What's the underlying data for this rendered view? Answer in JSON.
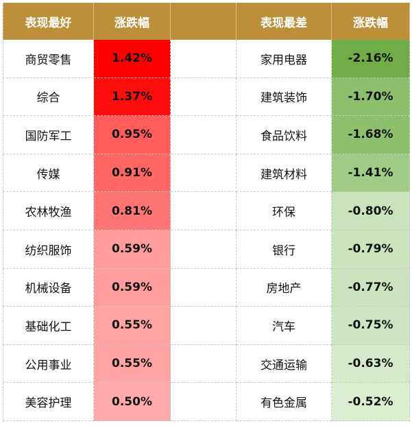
{
  "headers": {
    "best_name": "表现最好",
    "best_change": "涨跌幅",
    "worst_name": "表现最差",
    "worst_change": "涨跌幅"
  },
  "chart_data": {
    "type": "table",
    "columns": [
      "表现最好",
      "涨跌幅",
      "表现最差",
      "涨跌幅"
    ],
    "best": [
      {
        "name": "商贸零售",
        "change": "1.42%",
        "value": 1.42,
        "color": "#ff0000"
      },
      {
        "name": "综合",
        "change": "1.37%",
        "value": 1.37,
        "color": "#ff0d0d"
      },
      {
        "name": "国防军工",
        "change": "0.95%",
        "value": 0.95,
        "color": "#ff5c5c"
      },
      {
        "name": "传媒",
        "change": "0.91%",
        "value": 0.91,
        "color": "#ff6666"
      },
      {
        "name": "农林牧渔",
        "change": "0.81%",
        "value": 0.81,
        "color": "#ff7575"
      },
      {
        "name": "纺织服饰",
        "change": "0.59%",
        "value": 0.59,
        "color": "#ff9c9c"
      },
      {
        "name": "机械设备",
        "change": "0.59%",
        "value": 0.59,
        "color": "#ff9c9c"
      },
      {
        "name": "基础化工",
        "change": "0.55%",
        "value": 0.55,
        "color": "#ffa3a3"
      },
      {
        "name": "公用事业",
        "change": "0.55%",
        "value": 0.55,
        "color": "#ffa3a3"
      },
      {
        "name": "美容护理",
        "change": "0.50%",
        "value": 0.5,
        "color": "#ffabab"
      }
    ],
    "worst": [
      {
        "name": "家用电器",
        "change": "-2.16%",
        "value": -2.16,
        "color": "#70ad47"
      },
      {
        "name": "建筑装饰",
        "change": "-1.70%",
        "value": -1.7,
        "color": "#8cbf6d"
      },
      {
        "name": "食品饮料",
        "change": "-1.68%",
        "value": -1.68,
        "color": "#8dc06e"
      },
      {
        "name": "建筑材料",
        "change": "-1.41%",
        "value": -1.41,
        "color": "#9ecb86"
      },
      {
        "name": "环保",
        "change": "-0.80%",
        "value": -0.8,
        "color": "#c9e3bb"
      },
      {
        "name": "银行",
        "change": "-0.79%",
        "value": -0.79,
        "color": "#cae4bc"
      },
      {
        "name": "房地产",
        "change": "-0.77%",
        "value": -0.77,
        "color": "#cce4be"
      },
      {
        "name": "汽车",
        "change": "-0.75%",
        "value": -0.75,
        "color": "#cde5c0"
      },
      {
        "name": "交通运输",
        "change": "-0.63%",
        "value": -0.63,
        "color": "#d6eacb"
      },
      {
        "name": "有色金属",
        "change": "-0.52%",
        "value": -0.52,
        "color": "#dcedd2"
      }
    ]
  }
}
